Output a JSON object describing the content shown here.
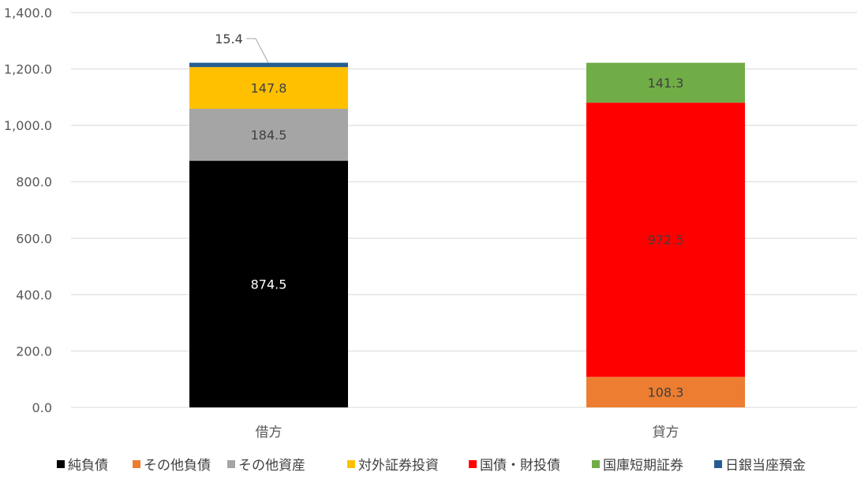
{
  "chart_data": {
    "type": "bar",
    "stacked": true,
    "categories": [
      "借方",
      "貸方"
    ],
    "series": [
      {
        "name": "純負債",
        "values": [
          874.5,
          0
        ],
        "color": "#000000",
        "label_color": "#ffffff"
      },
      {
        "name": "その他負債",
        "values": [
          0,
          108.3
        ],
        "color": "#ed7d31",
        "label_color": "#404040"
      },
      {
        "name": "その他資産",
        "values": [
          184.5,
          0
        ],
        "color": "#a5a5a5",
        "label_color": "#404040"
      },
      {
        "name": "対外証券投資",
        "values": [
          147.8,
          0
        ],
        "color": "#ffc000",
        "label_color": "#404040"
      },
      {
        "name": "国債・財投債",
        "values": [
          0,
          972.5
        ],
        "color": "#ff0000",
        "label_color": "#404040"
      },
      {
        "name": "国庫短期証券",
        "values": [
          0,
          141.3
        ],
        "color": "#70ad47",
        "label_color": "#404040"
      },
      {
        "name": "日銀当座預金",
        "values": [
          15.4,
          0
        ],
        "color": "#255e91",
        "label_color": "#404040"
      }
    ],
    "data_labels": [
      {
        "series": "純負債",
        "category": "借方",
        "text": "874.5"
      },
      {
        "series": "その他資産",
        "category": "借方",
        "text": "184.5"
      },
      {
        "series": "対外証券投資",
        "category": "借方",
        "text": "147.8"
      },
      {
        "series": "日銀当座預金",
        "category": "借方",
        "text": "15.4",
        "callout": true
      },
      {
        "series": "その他負債",
        "category": "貸方",
        "text": "108.3"
      },
      {
        "series": "国債・財投債",
        "category": "貸方",
        "text": "972.5"
      },
      {
        "series": "国庫短期証券",
        "category": "貸方",
        "text": "141.3"
      }
    ],
    "y_ticks": [
      "0.0",
      "200.0",
      "400.0",
      "600.0",
      "800.0",
      "1,000.0",
      "1,200.0",
      "1,400.0"
    ],
    "ylim": [
      0,
      1400
    ],
    "grid": true,
    "legend_position": "bottom",
    "title": "",
    "xlabel": "",
    "ylabel": ""
  }
}
